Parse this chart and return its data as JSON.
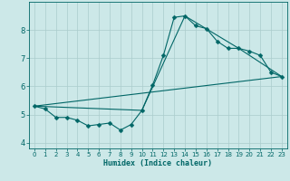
{
  "title": "",
  "xlabel": "Humidex (Indice chaleur)",
  "ylabel": "",
  "background_color": "#cce8e8",
  "grid_color": "#aacccc",
  "line_color": "#006666",
  "xlim": [
    -0.5,
    23.5
  ],
  "ylim": [
    3.8,
    9.0
  ],
  "xticks": [
    0,
    1,
    2,
    3,
    4,
    5,
    6,
    7,
    8,
    9,
    10,
    11,
    12,
    13,
    14,
    15,
    16,
    17,
    18,
    19,
    20,
    21,
    22,
    23
  ],
  "yticks": [
    4,
    5,
    6,
    7,
    8
  ],
  "line1_x": [
    0,
    1,
    2,
    3,
    4,
    5,
    6,
    7,
    8,
    9,
    10,
    11,
    12,
    13,
    14,
    15,
    16,
    17,
    18,
    19,
    20,
    21,
    22,
    23
  ],
  "line1_y": [
    5.3,
    5.2,
    4.9,
    4.9,
    4.8,
    4.6,
    4.65,
    4.7,
    4.45,
    4.65,
    5.15,
    6.05,
    7.1,
    8.45,
    8.5,
    8.15,
    8.05,
    7.6,
    7.35,
    7.35,
    7.25,
    7.1,
    6.5,
    6.35
  ],
  "line2_x": [
    0,
    10,
    14,
    19,
    23
  ],
  "line2_y": [
    5.3,
    5.15,
    8.5,
    7.35,
    6.35
  ],
  "line3_x": [
    0,
    23
  ],
  "line3_y": [
    5.3,
    6.35
  ],
  "tick_fontsize": 5,
  "xlabel_fontsize": 6,
  "marker_size": 2.5,
  "linewidth": 0.8
}
